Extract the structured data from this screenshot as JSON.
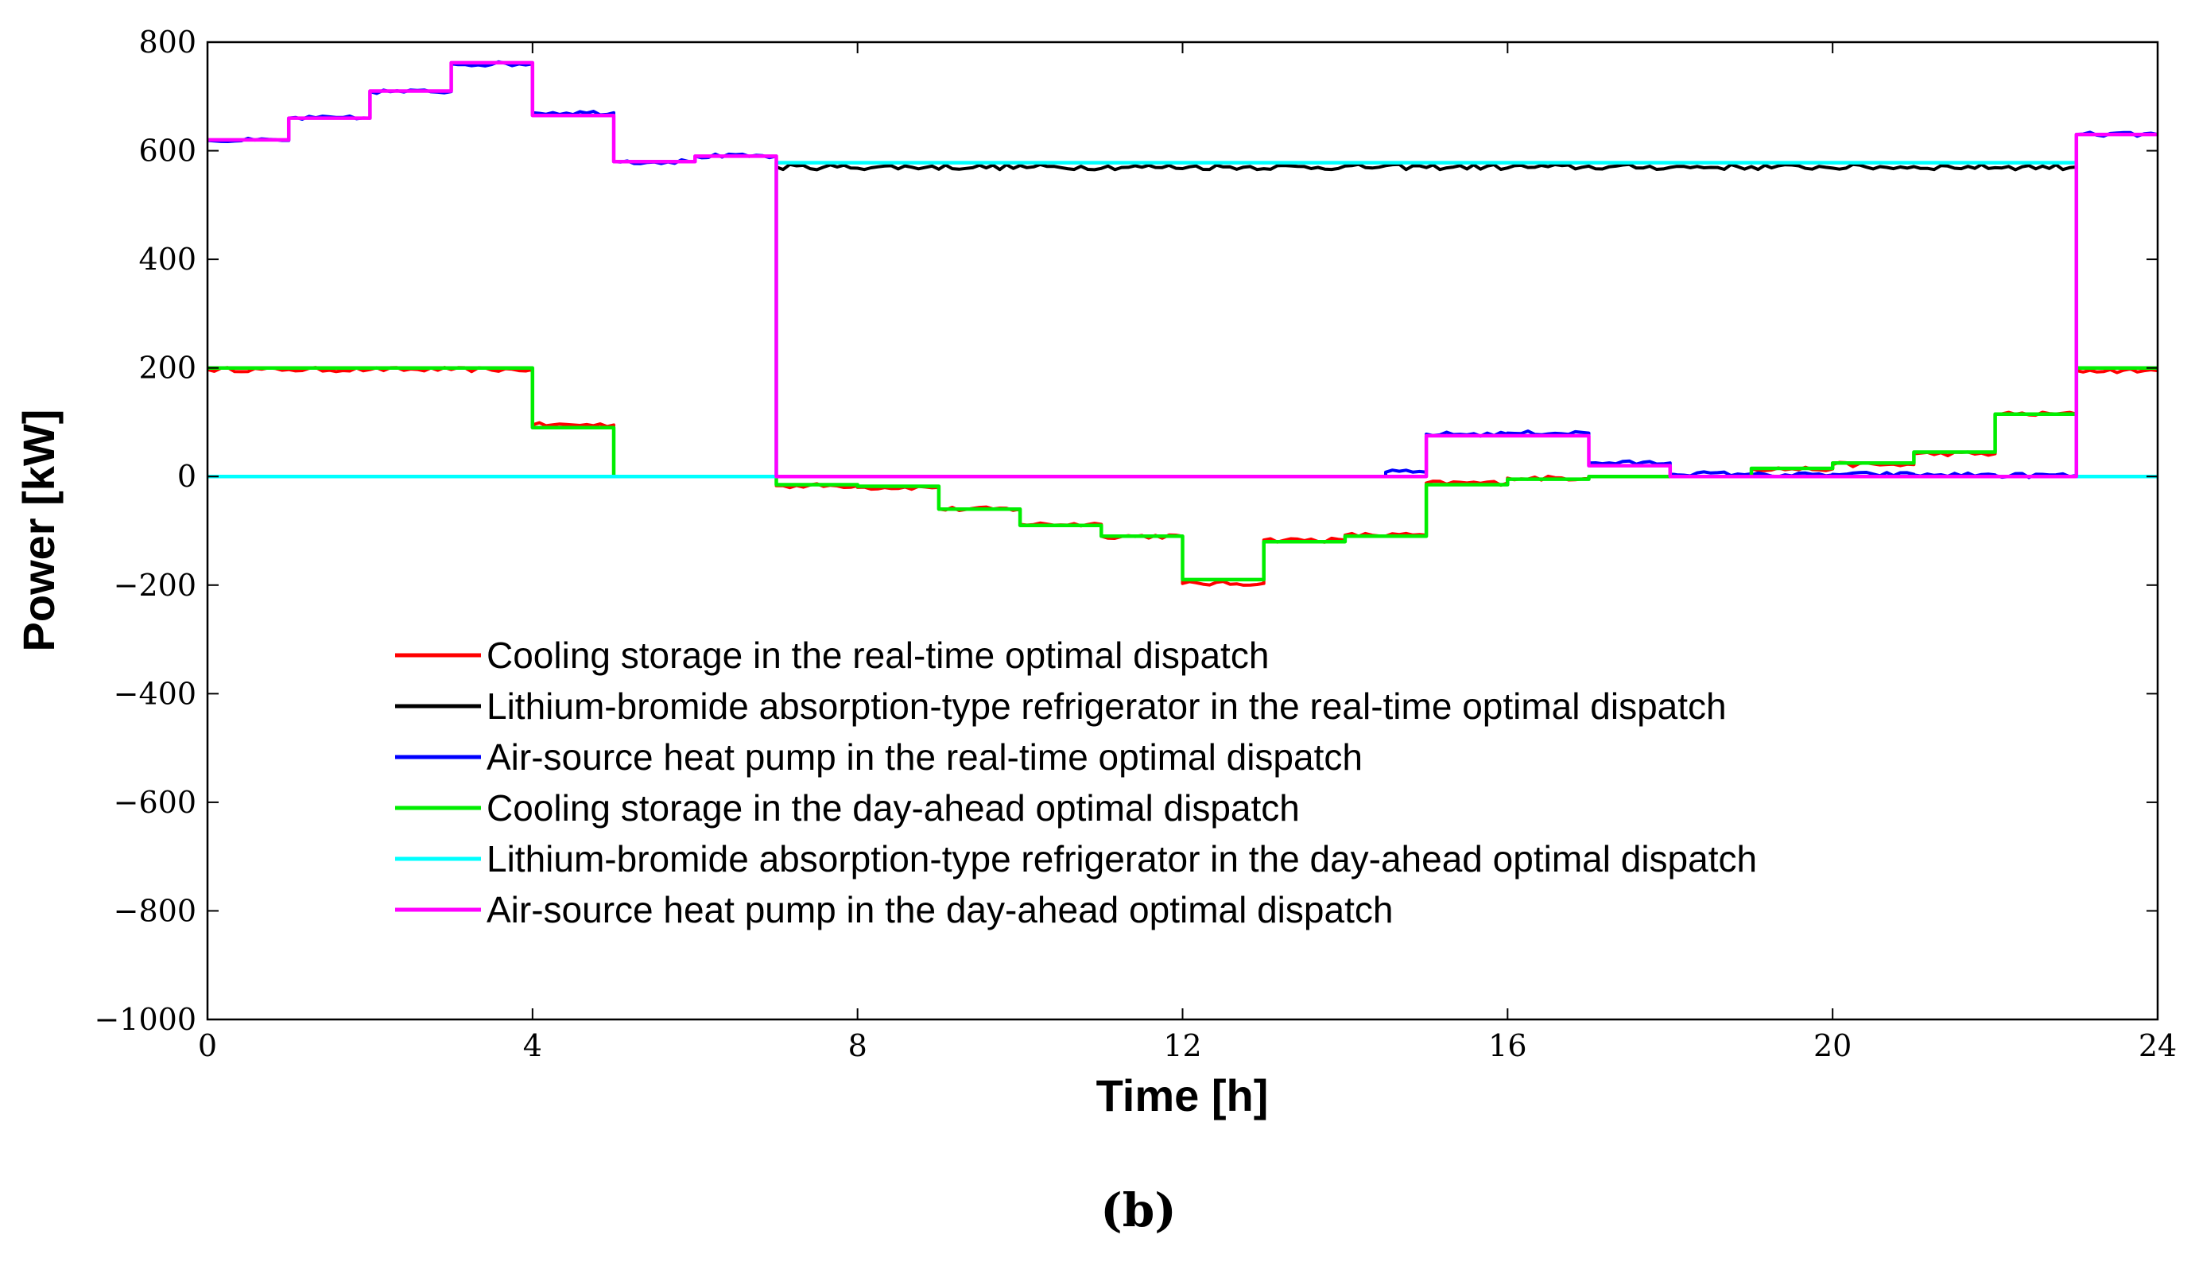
{
  "chart_data": {
    "type": "line",
    "title": "",
    "caption": "(b)",
    "xlabel": "Time [h]",
    "ylabel": "Power [kW]",
    "xlim": [
      0,
      24
    ],
    "ylim": [
      -1000,
      800
    ],
    "xticks": [
      0,
      4,
      8,
      12,
      16,
      20,
      24
    ],
    "yticks": [
      -1000,
      -800,
      -600,
      -400,
      -200,
      0,
      200,
      400,
      600,
      800
    ],
    "xtick_labels": [
      "0",
      "4",
      "8",
      "12",
      "16",
      "20",
      "24"
    ],
    "ytick_labels": [
      "−1000",
      "−800",
      "−600",
      "−400",
      "−200",
      "0",
      "200",
      "400",
      "600",
      "800"
    ],
    "grid": false,
    "legend_position": "lower-left",
    "series": [
      {
        "name": "Cooling storage in the real-time optimal dispatch",
        "color": "#ff0000",
        "noise": 4,
        "x": [
          0,
          1,
          1,
          2,
          2,
          3,
          3,
          4,
          4,
          5,
          5,
          7,
          7,
          8,
          8,
          9,
          9,
          10,
          10,
          11,
          11,
          12,
          12,
          13,
          13,
          14,
          14,
          15,
          15,
          16,
          16,
          17,
          17,
          18,
          18,
          19,
          19,
          20,
          20,
          21,
          21,
          22,
          22,
          23,
          23,
          24
        ],
        "y": [
          197,
          197,
          197,
          197,
          197,
          197,
          197,
          197,
          95,
          95,
          0,
          0,
          -17,
          -17,
          -20,
          -20,
          -60,
          -60,
          -88,
          -88,
          -110,
          -110,
          -197,
          -197,
          -117,
          -117,
          -108,
          -108,
          -12,
          -12,
          -3,
          -3,
          0,
          0,
          0,
          0,
          14,
          14,
          22,
          22,
          42,
          42,
          115,
          115,
          195,
          195
        ]
      },
      {
        "name": "Lithium-bromide absorption-type refrigerator in the real-time optimal dispatch",
        "color": "#000000",
        "noise": 5,
        "x": [
          0,
          7,
          7,
          23,
          23,
          24
        ],
        "y": [
          0,
          0,
          570,
          570,
          0,
          0
        ]
      },
      {
        "name": "Air-source heat pump in the real-time optimal dispatch",
        "color": "#0000ff",
        "noise": 4,
        "x": [
          0,
          1,
          1,
          2,
          2,
          3,
          3,
          4,
          4,
          5,
          5,
          6,
          6,
          7,
          7,
          14.5,
          14.5,
          15,
          15,
          16,
          16,
          17,
          17,
          18,
          18,
          19,
          19,
          20,
          20,
          21,
          21,
          22,
          22,
          23,
          23,
          24
        ],
        "y": [
          619,
          619,
          660,
          660,
          709,
          709,
          760,
          760,
          670,
          670,
          580,
          580,
          590,
          590,
          0,
          0,
          8,
          8,
          78,
          78,
          80,
          80,
          25,
          25,
          5,
          5,
          3,
          3,
          4,
          4,
          3,
          3,
          2,
          2,
          630,
          630
        ]
      },
      {
        "name": "Cooling storage in the day-ahead optimal dispatch",
        "color": "#00ee00",
        "noise": 0,
        "x": [
          0,
          4,
          4,
          5,
          5,
          7,
          7,
          8,
          8,
          9,
          9,
          10,
          10,
          11,
          11,
          12,
          12,
          13,
          13,
          14,
          14,
          15,
          15,
          16,
          16,
          17,
          17,
          18,
          18,
          19,
          19,
          20,
          20,
          21,
          21,
          22,
          22,
          23,
          23,
          24
        ],
        "y": [
          200,
          200,
          90,
          90,
          0,
          0,
          -15,
          -15,
          -18,
          -18,
          -60,
          -60,
          -90,
          -90,
          -110,
          -110,
          -190,
          -190,
          -120,
          -120,
          -110,
          -110,
          -15,
          -15,
          -5,
          -5,
          0,
          0,
          0,
          0,
          15,
          15,
          25,
          25,
          45,
          45,
          115,
          115,
          200,
          200
        ]
      },
      {
        "name": "Lithium-bromide absorption-type refrigerator in the day-ahead optimal dispatch",
        "color": "#00ffff",
        "noise": 0,
        "x": [
          0,
          7,
          7,
          23,
          23,
          24
        ],
        "y": [
          0,
          0,
          578,
          578,
          0,
          0
        ]
      },
      {
        "name": "Air-source heat pump in the day-ahead optimal dispatch",
        "color": "#ff00ff",
        "noise": 0,
        "x": [
          0,
          1,
          1,
          2,
          2,
          3,
          3,
          4,
          4,
          5,
          5,
          6,
          6,
          7,
          7,
          15,
          15,
          17,
          17,
          18,
          18,
          23,
          23,
          24
        ],
        "y": [
          620,
          620,
          660,
          660,
          710,
          710,
          762,
          762,
          665,
          665,
          580,
          580,
          590,
          590,
          0,
          0,
          75,
          75,
          20,
          20,
          0,
          0,
          630,
          630
        ]
      }
    ]
  }
}
